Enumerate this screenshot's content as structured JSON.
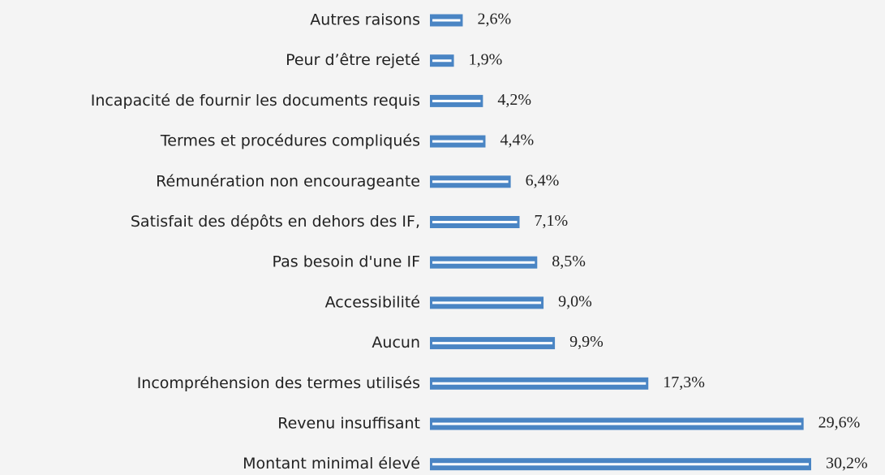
{
  "chart_data": {
    "type": "barh",
    "categories": [
      "Autres raisons",
      "Peur d’être rejeté",
      "Incapacité de fournir les documents requis",
      "Termes et procédures compliqués",
      "Rémunération non encourageante",
      "Satisfait des dépôts en dehors des IF,",
      "Pas besoin d'une IF",
      "Accessibilité",
      "Aucun",
      "Incompréhension des termes utilisés",
      "Revenu insuffisant",
      "Montant minimal élevé"
    ],
    "values": [
      2.6,
      1.9,
      4.2,
      4.4,
      6.4,
      7.1,
      8.5,
      9.0,
      9.9,
      17.3,
      29.6,
      30.2
    ],
    "value_labels": [
      "2,6%",
      "1,9%",
      "4,2%",
      "4,4%",
      "6,4%",
      "7,1%",
      "8,5%",
      "9,0%",
      "9,9%",
      "17,3%",
      "29,6%",
      "30,2%"
    ],
    "color": "#4a85c4"
  }
}
